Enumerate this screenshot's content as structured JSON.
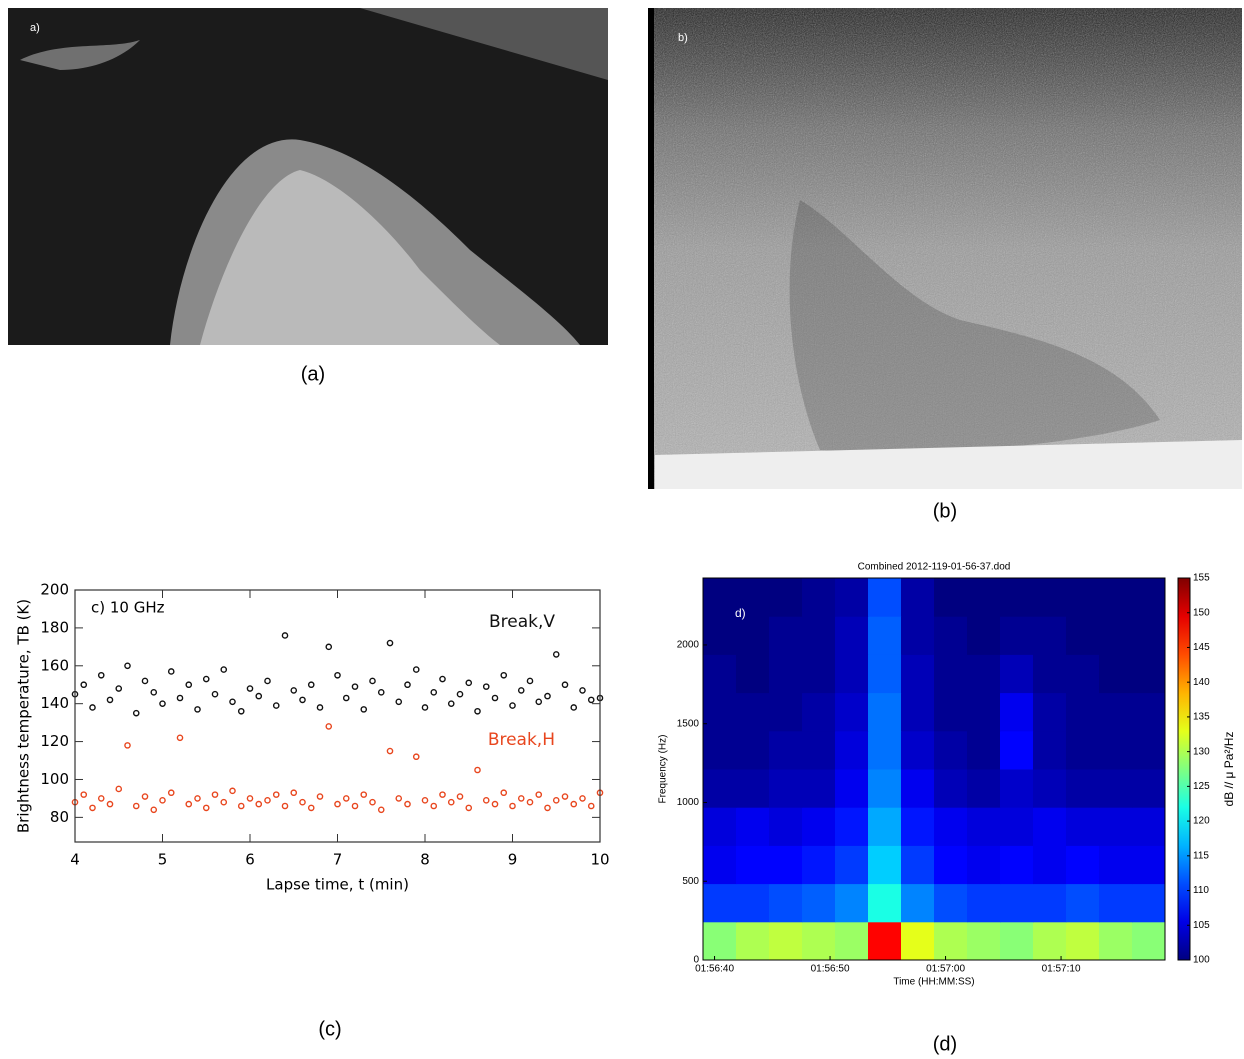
{
  "figure": {
    "panels": [
      {
        "caption": "(a)",
        "label": "a)"
      },
      {
        "caption": "(b)",
        "label": "b)"
      },
      {
        "caption": "(c)"
      },
      {
        "caption": "(d)"
      }
    ]
  },
  "chart_data": [
    {
      "type": "scatter",
      "title": "c) 10 GHz",
      "xlabel": "Lapse time, t (min)",
      "ylabel": "Brightness temperature, TB (K)",
      "x": [
        4.0,
        4.1,
        4.2,
        4.3,
        4.4,
        4.5,
        4.6,
        4.7,
        4.8,
        4.9,
        5.0,
        5.1,
        5.2,
        5.3,
        5.4,
        5.5,
        5.6,
        5.7,
        5.8,
        5.9,
        6.0,
        6.1,
        6.2,
        6.3,
        6.4,
        6.5,
        6.6,
        6.7,
        6.8,
        6.9,
        7.0,
        7.1,
        7.2,
        7.3,
        7.4,
        7.5,
        7.6,
        7.7,
        7.8,
        7.9,
        8.0,
        8.1,
        8.2,
        8.3,
        8.4,
        8.5,
        8.6,
        8.7,
        8.8,
        8.9,
        9.0,
        9.1,
        9.2,
        9.3,
        9.4,
        9.5,
        9.6,
        9.7,
        9.8,
        9.9,
        10.0
      ],
      "series": [
        {
          "name": "Break,V",
          "color": "#111111",
          "values": [
            145,
            150,
            138,
            155,
            142,
            148,
            160,
            135,
            152,
            146,
            140,
            157,
            143,
            150,
            137,
            153,
            145,
            158,
            141,
            136,
            148,
            144,
            152,
            139,
            176,
            147,
            142,
            150,
            138,
            170,
            155,
            143,
            149,
            137,
            152,
            146,
            172,
            141,
            150,
            158,
            138,
            146,
            153,
            140,
            145,
            151,
            136,
            149,
            143,
            155,
            139,
            147,
            152,
            141,
            144,
            166,
            150,
            138,
            147,
            142,
            143
          ]
        },
        {
          "name": "Break,H",
          "color": "#e8461e",
          "values": [
            88,
            92,
            85,
            90,
            87,
            95,
            118,
            86,
            91,
            84,
            89,
            93,
            122,
            87,
            90,
            85,
            92,
            88,
            94,
            86,
            90,
            87,
            89,
            92,
            86,
            93,
            88,
            85,
            91,
            128,
            87,
            90,
            86,
            92,
            88,
            84,
            115,
            90,
            87,
            112,
            89,
            86,
            92,
            88,
            91,
            85,
            105,
            89,
            87,
            93,
            86,
            90,
            88,
            92,
            85,
            89,
            91,
            87,
            90,
            86,
            93
          ]
        }
      ],
      "xlim": [
        4,
        10
      ],
      "ylim": [
        67,
        200
      ],
      "xticks": [
        4,
        5,
        6,
        7,
        8,
        9,
        10
      ],
      "yticks": [
        80,
        100,
        120,
        140,
        160,
        180,
        200
      ]
    },
    {
      "type": "heatmap",
      "title": "Combined 2012-119-01-56-37.dod",
      "annotation": "d)",
      "xlabel": "Time (HH:MM:SS)",
      "ylabel": "Frequency (Hz)",
      "xlim": [
        "01:56:39",
        "01:57:19"
      ],
      "xticks": [
        "01:56:40",
        "01:56:50",
        "01:57:00",
        "01:57:10"
      ],
      "ylim": [
        0,
        2425
      ],
      "yticks": [
        0,
        500,
        1000,
        1500,
        2000
      ],
      "z": [
        [
          128,
          130,
          131,
          130,
          129,
          148,
          133,
          130,
          129,
          128,
          130,
          131,
          129,
          128
        ],
        [
          110,
          110,
          111,
          112,
          114,
          122,
          114,
          111,
          110,
          110,
          110,
          111,
          110,
          110
        ],
        [
          106,
          107,
          107,
          108,
          110,
          118,
          110,
          107,
          106,
          107,
          106,
          107,
          106,
          106
        ],
        [
          105,
          106,
          105,
          106,
          108,
          116,
          108,
          106,
          105,
          105,
          106,
          105,
          105,
          105
        ],
        [
          102,
          102,
          103,
          103,
          106,
          114,
          106,
          103,
          102,
          104,
          103,
          102,
          102,
          102
        ],
        [
          101,
          101,
          102,
          102,
          105,
          113,
          104,
          102,
          101,
          107,
          102,
          101,
          101,
          101
        ],
        [
          101,
          101,
          101,
          102,
          104,
          113,
          103,
          101,
          101,
          106,
          102,
          101,
          101,
          101
        ],
        [
          101,
          100,
          101,
          101,
          103,
          112,
          103,
          101,
          101,
          103,
          101,
          101,
          100,
          100
        ],
        [
          100,
          100,
          101,
          101,
          103,
          112,
          102,
          101,
          100,
          101,
          101,
          100,
          100,
          100
        ],
        [
          100,
          100,
          100,
          101,
          102,
          111,
          102,
          100,
          100,
          100,
          100,
          100,
          100,
          100
        ]
      ],
      "zlim": [
        100,
        155
      ],
      "zticks": [
        100,
        105,
        110,
        115,
        120,
        125,
        130,
        135,
        140,
        145,
        150,
        155
      ],
      "colorbar_label": "dB // μ Pa²/Hz"
    }
  ]
}
